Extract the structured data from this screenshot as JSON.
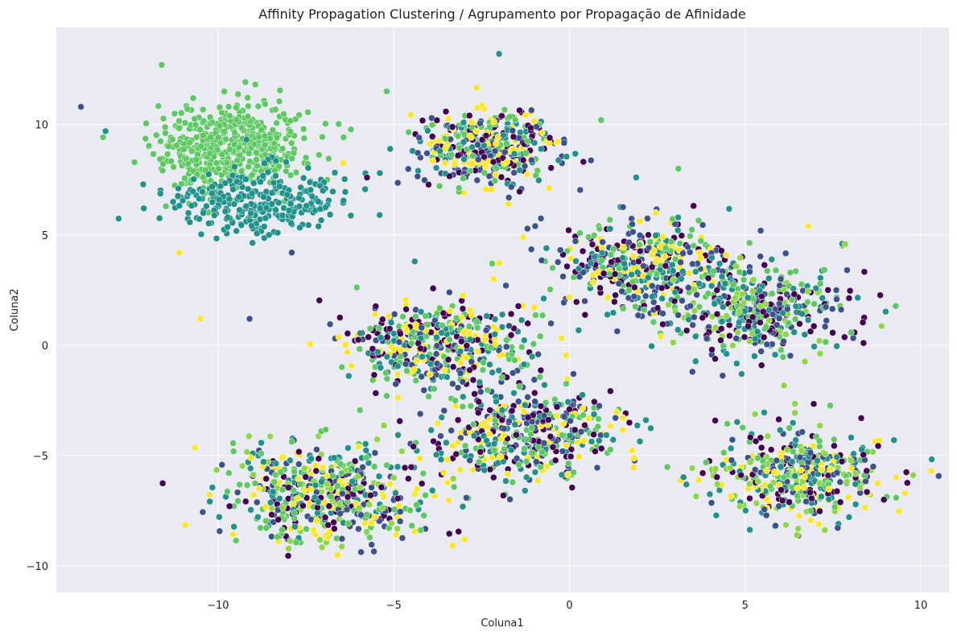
{
  "chart_data": {
    "type": "scatter",
    "title": "Affinity Propagation Clustering / Agrupamento por Propagação de Afinidade",
    "xlabel": "Coluna1",
    "ylabel": "Coluna2",
    "xlim": [
      -14.6,
      10.8
    ],
    "ylim": [
      -11.2,
      14.4
    ],
    "xticks": [
      -10,
      -5,
      0,
      5,
      10
    ],
    "yticks": [
      -10,
      -5,
      0,
      5,
      10
    ],
    "xtick_labels": [
      "−10",
      "−5",
      "0",
      "5",
      "10"
    ],
    "ytick_labels": [
      "−10",
      "−5",
      "0",
      "5",
      "10"
    ],
    "grid": true,
    "background": "#eaeaf2",
    "palette": [
      "#440154",
      "#3b528b",
      "#21918c",
      "#5ec962",
      "#fde725",
      "#8fd744"
    ],
    "groups": [
      {
        "center": [
          -9.6,
          9.0
        ],
        "spread": [
          1.05,
          1.0
        ],
        "count": 520,
        "colors": [
          3
        ]
      },
      {
        "center": [
          -8.9,
          6.4
        ],
        "spread": [
          1.2,
          0.75
        ],
        "count": 300,
        "colors": [
          2
        ]
      },
      {
        "center": [
          -2.3,
          9.0
        ],
        "spread": [
          1.0,
          0.85
        ],
        "count": 420,
        "colors": [
          1,
          3,
          2,
          0,
          4
        ]
      },
      {
        "center": [
          2.2,
          3.7
        ],
        "spread": [
          1.25,
          1.0
        ],
        "count": 420,
        "colors": [
          3,
          2,
          4,
          1,
          0
        ]
      },
      {
        "center": [
          5.3,
          1.7
        ],
        "spread": [
          1.3,
          1.05
        ],
        "count": 420,
        "colors": [
          1,
          0,
          3,
          2,
          5
        ]
      },
      {
        "center": [
          -3.8,
          0.0
        ],
        "spread": [
          1.3,
          1.0
        ],
        "count": 440,
        "colors": [
          2,
          4,
          1,
          3,
          0
        ]
      },
      {
        "center": [
          -1.2,
          -4.0
        ],
        "spread": [
          1.35,
          1.0
        ],
        "count": 440,
        "colors": [
          3,
          2,
          1,
          0,
          4
        ]
      },
      {
        "center": [
          -6.9,
          -6.8
        ],
        "spread": [
          1.45,
          1.15
        ],
        "count": 540,
        "colors": [
          4,
          1,
          3,
          2,
          0,
          5
        ]
      },
      {
        "center": [
          6.6,
          -5.8
        ],
        "spread": [
          1.3,
          0.95
        ],
        "count": 430,
        "colors": [
          1,
          2,
          0,
          5,
          4,
          3
        ]
      }
    ],
    "outliers": [
      [
        -13.9,
        10.8
      ],
      [
        -13.2,
        9.7
      ],
      [
        -11.6,
        12.7
      ],
      [
        -10.5,
        1.2
      ],
      [
        -9.1,
        1.2
      ],
      [
        -2.0,
        13.2
      ],
      [
        0.9,
        10.2
      ],
      [
        2.6,
        0.4
      ],
      [
        3.5,
        -1.2
      ],
      [
        4.9,
        -1.3
      ],
      [
        -5.2,
        11.5
      ],
      [
        -11.1,
        4.2
      ],
      [
        -7.9,
        4.2
      ],
      [
        1.9,
        7.6
      ],
      [
        3.1,
        8.0
      ],
      [
        6.8,
        5.4
      ],
      [
        7.9,
        3.4
      ],
      [
        -4.4,
        3.8
      ],
      [
        -2.2,
        3.7
      ],
      [
        -6.0,
        -4.6
      ]
    ]
  }
}
